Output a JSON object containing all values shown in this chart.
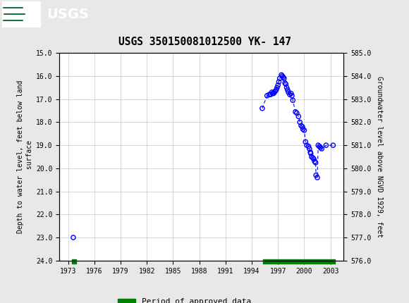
{
  "title": "USGS 350150081012500 YK- 147",
  "ylabel_left": "Depth to water level, feet below land\n surface",
  "ylabel_right": "Groundwater level above NGVD 1929, feet",
  "ylim_left": [
    24.0,
    15.0
  ],
  "ylim_right": [
    576.0,
    585.0
  ],
  "xlim": [
    1972.0,
    2004.5
  ],
  "xticks": [
    1973,
    1976,
    1979,
    1982,
    1985,
    1988,
    1991,
    1994,
    1997,
    2000,
    2003
  ],
  "yticks_left": [
    15.0,
    16.0,
    17.0,
    18.0,
    19.0,
    20.0,
    21.0,
    22.0,
    23.0,
    24.0
  ],
  "yticks_right": [
    585.0,
    584.0,
    583.0,
    582.0,
    581.0,
    580.0,
    579.0,
    578.0,
    577.0,
    576.0
  ],
  "isolated_points": [
    [
      1973.6,
      23.0
    ]
  ],
  "connected_points": [
    [
      1995.2,
      17.4
    ],
    [
      1995.75,
      16.85
    ],
    [
      1996.0,
      16.8
    ],
    [
      1996.15,
      16.8
    ],
    [
      1996.3,
      16.7
    ],
    [
      1996.4,
      16.75
    ],
    [
      1996.5,
      16.75
    ],
    [
      1996.6,
      16.7
    ],
    [
      1996.7,
      16.65
    ],
    [
      1996.8,
      16.6
    ],
    [
      1996.9,
      16.5
    ],
    [
      1997.0,
      16.4
    ],
    [
      1997.1,
      16.25
    ],
    [
      1997.2,
      16.1
    ],
    [
      1997.4,
      15.95
    ],
    [
      1997.5,
      16.0
    ],
    [
      1997.6,
      16.05
    ],
    [
      1997.7,
      16.1
    ],
    [
      1997.8,
      16.3
    ],
    [
      1997.9,
      16.35
    ],
    [
      1998.0,
      16.5
    ],
    [
      1998.1,
      16.6
    ],
    [
      1998.2,
      16.7
    ],
    [
      1998.35,
      16.8
    ],
    [
      1998.5,
      16.75
    ],
    [
      1998.6,
      16.85
    ],
    [
      1998.7,
      17.05
    ],
    [
      1999.0,
      17.55
    ],
    [
      1999.15,
      17.6
    ],
    [
      1999.35,
      17.75
    ],
    [
      1999.5,
      18.0
    ],
    [
      1999.65,
      18.15
    ],
    [
      1999.8,
      18.2
    ],
    [
      1999.85,
      18.3
    ],
    [
      2000.0,
      18.35
    ],
    [
      2000.15,
      18.85
    ],
    [
      2000.3,
      19.0
    ],
    [
      2000.5,
      19.05
    ],
    [
      2000.6,
      19.15
    ],
    [
      2000.7,
      19.3
    ],
    [
      2000.75,
      19.35
    ],
    [
      2000.85,
      19.5
    ],
    [
      2001.0,
      19.55
    ],
    [
      2001.1,
      19.6
    ],
    [
      2001.2,
      19.7
    ],
    [
      2001.3,
      19.75
    ],
    [
      2001.35,
      20.3
    ],
    [
      2001.5,
      20.4
    ],
    [
      2001.6,
      19.0
    ],
    [
      2001.75,
      19.05
    ],
    [
      2001.85,
      19.1
    ],
    [
      2002.0,
      19.15
    ],
    [
      2002.5,
      19.0
    ],
    [
      2003.3,
      19.0
    ]
  ],
  "approved_bar1_start": 1973.45,
  "approved_bar1_end": 1973.95,
  "approved_bar2_start": 1995.3,
  "approved_bar2_end": 2003.5,
  "bar_color": "#008000",
  "point_color": "blue",
  "line_color": "blue",
  "header_color": "#1e6e42",
  "background_color": "#e8e8e8",
  "plot_bg_color": "#ffffff",
  "grid_color": "#c8c8c8"
}
